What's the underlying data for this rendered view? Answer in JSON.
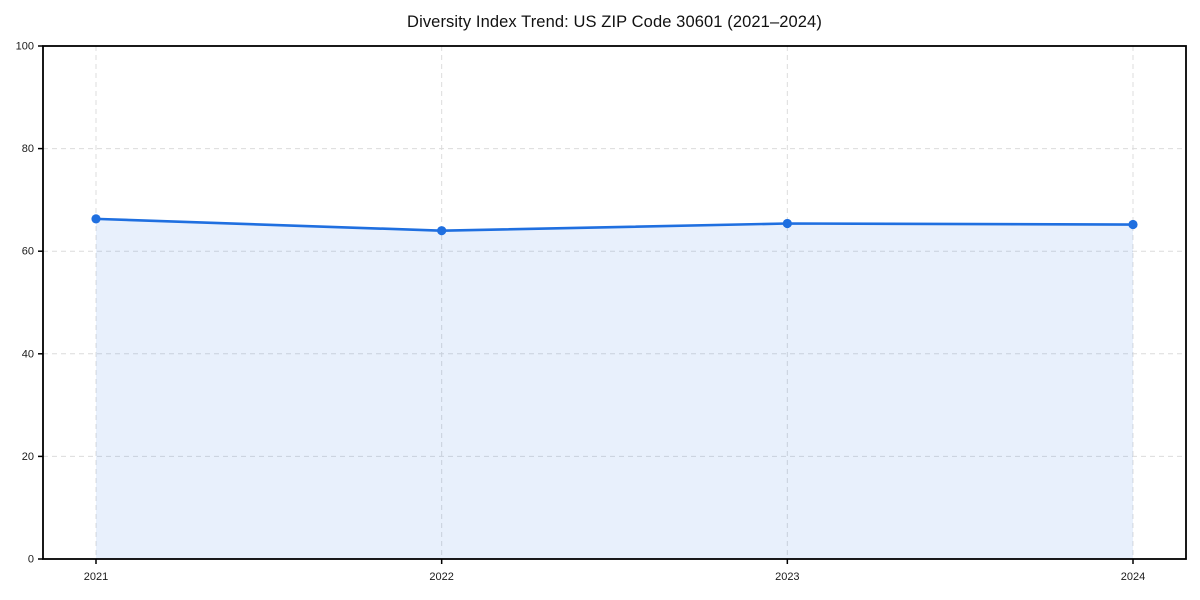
{
  "chart_data": {
    "type": "area",
    "title": "Diversity Index Trend: US ZIP Code 30601 (2021–2024)",
    "x": [
      "2021",
      "2022",
      "2023",
      "2024"
    ],
    "series": [
      {
        "name": "Diversity Index",
        "values": [
          66.3,
          64.0,
          65.4,
          65.2
        ]
      }
    ],
    "xlabel": "",
    "ylabel": "",
    "ylim": [
      0,
      100
    ],
    "yticks": [
      0,
      20,
      40,
      60,
      80,
      100
    ],
    "grid": true,
    "grid_style": "dashed",
    "legend_position": "none",
    "colors": {
      "line": "#1f6fe0",
      "marker": "#1f6fe0",
      "fill": "rgba(31, 111, 224, 0.10)",
      "grid": "#dcdcdc",
      "spine": "#000000",
      "tick_text": "#1a1a1a",
      "background": "#ffffff"
    }
  }
}
